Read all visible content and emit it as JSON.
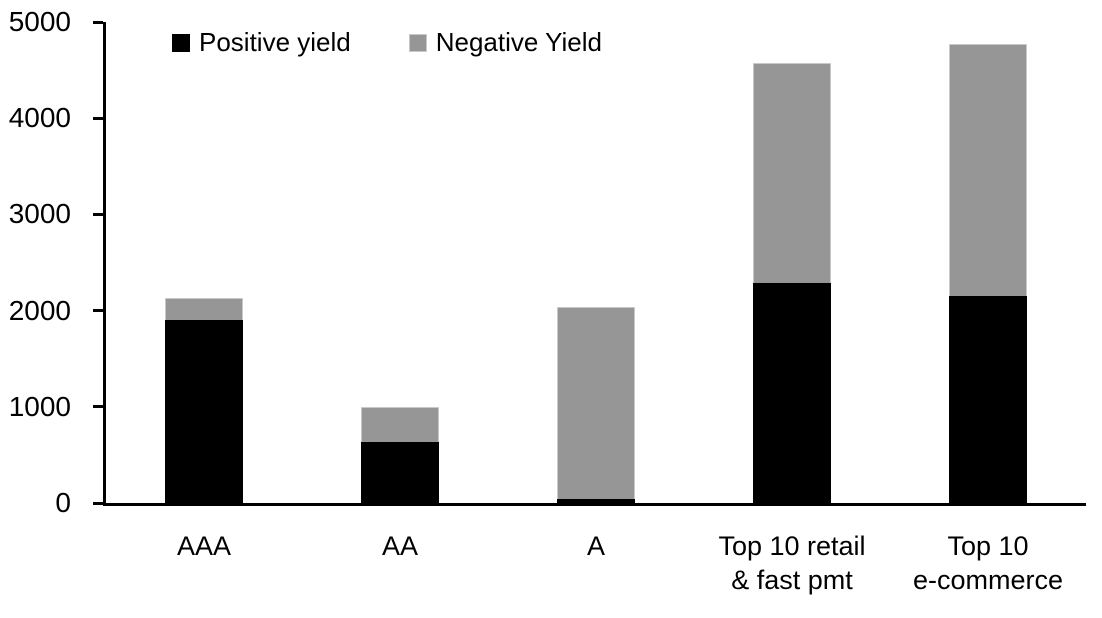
{
  "chart_data": {
    "type": "bar",
    "stacked": true,
    "title": "",
    "xlabel": "",
    "ylabel": "",
    "categories": [
      "AAA",
      "AA",
      "A",
      "Top 10 retail & fast pmt",
      "Top 10 e-commerce"
    ],
    "category_lines": [
      [
        "AAA"
      ],
      [
        "AA"
      ],
      [
        "A"
      ],
      [
        "Top 10 retail",
        "& fast pmt"
      ],
      [
        "Top 10",
        "e-commerce"
      ]
    ],
    "series": [
      {
        "name": "Positive yield",
        "color": "#000000",
        "values": [
          1900,
          630,
          40,
          2290,
          2150
        ]
      },
      {
        "name": "Negative Yield",
        "color": "#969696",
        "values": [
          230,
          370,
          2000,
          2280,
          2620
        ]
      }
    ],
    "totals": [
      2130,
      1000,
      2040,
      4570,
      4770
    ],
    "ylim": [
      0,
      5000
    ],
    "yticks": [
      "0",
      "1000",
      "2000",
      "3000",
      "4000",
      "5000"
    ],
    "grid": false,
    "legend_position": "top-inside",
    "axis_color": "#000000",
    "background": "#ffffff",
    "bar_edge_color": "#c9c9c9"
  }
}
